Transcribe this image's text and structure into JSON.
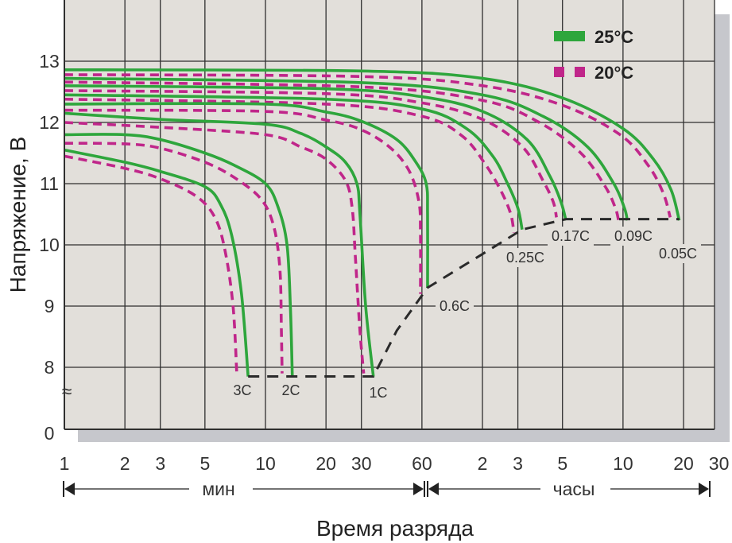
{
  "chart_data": {
    "type": "line",
    "title": "",
    "xlabel": "Время разряда",
    "ylabel": "Напряжение, В",
    "x_scale": "log",
    "x_unit_groups": [
      {
        "label": "мин",
        "ticks": [
          "1",
          "2",
          "3",
          "5",
          "10",
          "20",
          "30",
          "60"
        ],
        "values_min": [
          1,
          2,
          3,
          5,
          10,
          20,
          30,
          60
        ]
      },
      {
        "label": "часы",
        "ticks": [
          "2",
          "3",
          "5",
          "10",
          "20",
          "30"
        ],
        "values_min": [
          120,
          180,
          300,
          600,
          1200,
          1800
        ]
      }
    ],
    "xlim_min": [
      1,
      1710
    ],
    "y_ticks": [
      "8",
      "9",
      "10",
      "11",
      "12",
      "13"
    ],
    "y_zero_label": "0",
    "y_break_symbol": "≈",
    "ylim": [
      7,
      14
    ],
    "grid": true,
    "legend_position": "top-right",
    "legend": [
      {
        "name": "25°C",
        "color": "#2ea63c",
        "style": "solid"
      },
      {
        "name": "20°C",
        "color": "#c0268a",
        "style": "dashed"
      }
    ],
    "series": [
      {
        "rate": "3C",
        "temp": "25°C",
        "points": [
          [
            1,
            11.55
          ],
          [
            2,
            11.35
          ],
          [
            3,
            11.2
          ],
          [
            5,
            10.95
          ],
          [
            6,
            10.65
          ],
          [
            6.8,
            10.15
          ],
          [
            7.6,
            9.2
          ],
          [
            8.2,
            7.85
          ]
        ]
      },
      {
        "rate": "2C",
        "temp": "25°C",
        "points": [
          [
            1,
            11.8
          ],
          [
            2,
            11.8
          ],
          [
            3,
            11.72
          ],
          [
            5,
            11.5
          ],
          [
            7,
            11.3
          ],
          [
            10,
            11.0
          ],
          [
            11.6,
            10.6
          ],
          [
            12.8,
            10.0
          ],
          [
            13.3,
            9.0
          ],
          [
            13.6,
            7.85
          ]
        ]
      },
      {
        "rate": "1C",
        "temp": "25°C",
        "points": [
          [
            1,
            12.15
          ],
          [
            3,
            12.05
          ],
          [
            10,
            11.97
          ],
          [
            15,
            11.82
          ],
          [
            20,
            11.6
          ],
          [
            25,
            11.35
          ],
          [
            28.5,
            11.0
          ],
          [
            29.5,
            10.5
          ],
          [
            31.5,
            9.0
          ],
          [
            34.4,
            7.85
          ]
        ]
      },
      {
        "rate": "0.6C",
        "temp": "25°C",
        "points": [
          [
            1,
            12.3
          ],
          [
            10,
            12.3
          ],
          [
            20,
            12.17
          ],
          [
            30,
            12.02
          ],
          [
            45,
            11.72
          ],
          [
            56,
            11.35
          ],
          [
            63,
            11.0
          ],
          [
            64,
            10.5
          ],
          [
            64,
            9.3
          ]
        ]
      },
      {
        "rate": "0.25C",
        "temp": "25°C",
        "points": [
          [
            1,
            12.45
          ],
          [
            20,
            12.38
          ],
          [
            60,
            12.22
          ],
          [
            100,
            11.9
          ],
          [
            135,
            11.45
          ],
          [
            160,
            11.0
          ],
          [
            180,
            10.6
          ],
          [
            189,
            10.25
          ]
        ]
      },
      {
        "rate": "0.17C",
        "temp": "25°C",
        "points": [
          [
            1,
            12.6
          ],
          [
            20,
            12.55
          ],
          [
            60,
            12.42
          ],
          [
            120,
            12.18
          ],
          [
            200,
            11.72
          ],
          [
            260,
            11.12
          ],
          [
            295,
            10.7
          ],
          [
            312,
            10.4
          ]
        ]
      },
      {
        "rate": "0.09C",
        "temp": "25°C",
        "points": [
          [
            1,
            12.72
          ],
          [
            30,
            12.65
          ],
          [
            120,
            12.45
          ],
          [
            240,
            12.1
          ],
          [
            400,
            11.6
          ],
          [
            540,
            11.0
          ],
          [
            610,
            10.6
          ],
          [
            630,
            10.4
          ]
        ]
      },
      {
        "rate": "0.05C",
        "temp": "25°C",
        "points": [
          [
            1,
            12.86
          ],
          [
            30,
            12.84
          ],
          [
            120,
            12.72
          ],
          [
            300,
            12.4
          ],
          [
            600,
            11.9
          ],
          [
            850,
            11.4
          ],
          [
            1040,
            10.9
          ],
          [
            1142,
            10.4
          ]
        ]
      },
      {
        "rate": "3C",
        "temp": "20°C",
        "points": [
          [
            1,
            11.45
          ],
          [
            2,
            11.25
          ],
          [
            3,
            11.08
          ],
          [
            4.5,
            10.8
          ],
          [
            5.6,
            10.45
          ],
          [
            6.3,
            9.9
          ],
          [
            6.9,
            9.0
          ],
          [
            7.2,
            7.9
          ]
        ]
      },
      {
        "rate": "2C",
        "temp": "20°C",
        "points": [
          [
            1,
            11.66
          ],
          [
            2,
            11.65
          ],
          [
            3,
            11.58
          ],
          [
            5,
            11.35
          ],
          [
            7,
            11.1
          ],
          [
            9.5,
            10.75
          ],
          [
            11,
            10.3
          ],
          [
            11.8,
            9.6
          ],
          [
            12.0,
            8.6
          ],
          [
            12.1,
            7.9
          ]
        ]
      },
      {
        "rate": "1C",
        "temp": "20°C",
        "points": [
          [
            1,
            12.0
          ],
          [
            3,
            11.92
          ],
          [
            10,
            11.8
          ],
          [
            15,
            11.6
          ],
          [
            20,
            11.4
          ],
          [
            25,
            11.05
          ],
          [
            27,
            10.6
          ],
          [
            28,
            9.8
          ],
          [
            29.5,
            8.6
          ],
          [
            30.8,
            7.9
          ]
        ]
      },
      {
        "rate": "0.6C",
        "temp": "20°C",
        "points": [
          [
            1,
            12.2
          ],
          [
            10,
            12.18
          ],
          [
            20,
            12.04
          ],
          [
            30,
            11.88
          ],
          [
            42,
            11.58
          ],
          [
            52,
            11.2
          ],
          [
            58,
            10.7
          ],
          [
            59,
            10.2
          ],
          [
            59,
            9.2
          ]
        ]
      },
      {
        "rate": "0.25C",
        "temp": "20°C",
        "points": [
          [
            1,
            12.38
          ],
          [
            20,
            12.3
          ],
          [
            60,
            12.1
          ],
          [
            95,
            11.78
          ],
          [
            125,
            11.3
          ],
          [
            150,
            10.85
          ],
          [
            166,
            10.5
          ],
          [
            172,
            10.2
          ]
        ]
      },
      {
        "rate": "0.17C",
        "temp": "20°C",
        "points": [
          [
            1,
            12.52
          ],
          [
            20,
            12.47
          ],
          [
            60,
            12.32
          ],
          [
            120,
            12.05
          ],
          [
            190,
            11.6
          ],
          [
            240,
            11.05
          ],
          [
            270,
            10.7
          ],
          [
            280,
            10.45
          ]
        ]
      },
      {
        "rate": "0.09C",
        "temp": "20°C",
        "points": [
          [
            1,
            12.66
          ],
          [
            30,
            12.58
          ],
          [
            120,
            12.36
          ],
          [
            230,
            12.0
          ],
          [
            370,
            11.5
          ],
          [
            490,
            10.95
          ],
          [
            550,
            10.6
          ],
          [
            570,
            10.4
          ]
        ]
      },
      {
        "rate": "0.05C",
        "temp": "20°C",
        "points": [
          [
            1,
            12.78
          ],
          [
            30,
            12.75
          ],
          [
            120,
            12.6
          ],
          [
            300,
            12.28
          ],
          [
            580,
            11.8
          ],
          [
            800,
            11.3
          ],
          [
            950,
            10.85
          ],
          [
            1030,
            10.45
          ]
        ]
      }
    ],
    "cutoff_line": {
      "color": "#2a2a2a",
      "style": "dashed",
      "points": [
        [
          8.2,
          7.85
        ],
        [
          34.4,
          7.85
        ],
        [
          45,
          8.6
        ],
        [
          64,
          9.3
        ],
        [
          120,
          9.85
        ],
        [
          189,
          10.25
        ],
        [
          312,
          10.42
        ],
        [
          1142,
          10.42
        ]
      ]
    },
    "rate_labels": [
      "3C",
      "2C",
      "1C",
      "0.6C",
      "0.25C",
      "0.17C",
      "0.09C",
      "0.05C"
    ],
    "colors": {
      "plot_bg": "#e2dfda",
      "shadow": "#c6c7cc",
      "grid": "#2f2f2f"
    }
  }
}
